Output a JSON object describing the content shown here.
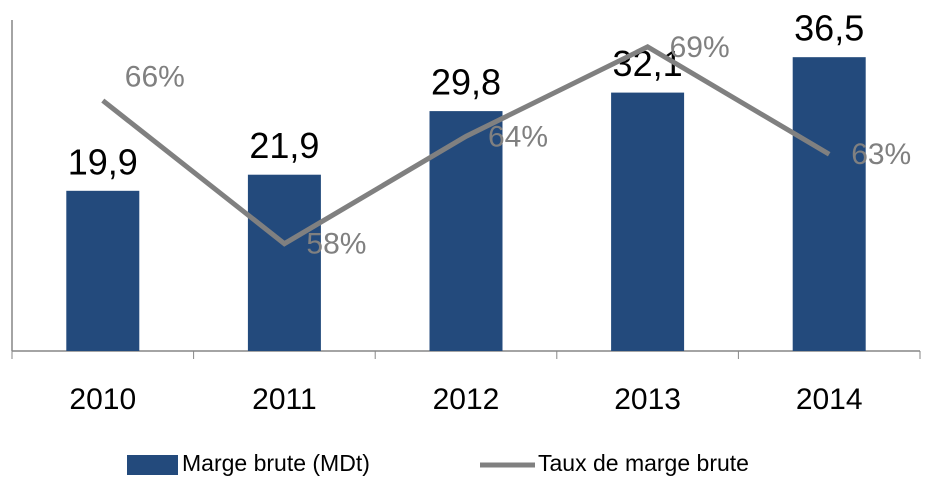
{
  "chart_data": {
    "type": "bar",
    "categories": [
      "2010",
      "2011",
      "2012",
      "2013",
      "2014"
    ],
    "series": [
      {
        "name": "Marge brute (MDt)",
        "type": "bar",
        "color": "#234a7c",
        "values": [
          19.9,
          21.9,
          29.8,
          32.1,
          36.5
        ],
        "value_labels": [
          "19,9",
          "21,9",
          "29,8",
          "32,1",
          "36,5"
        ]
      },
      {
        "name": "Taux de marge brute",
        "type": "line",
        "axis": "y2",
        "color": "#808080",
        "values": [
          66,
          58,
          64,
          69,
          63
        ],
        "value_labels": [
          "66%",
          "58%",
          "64%",
          "69%",
          "63%"
        ]
      }
    ],
    "ylim": [
      0,
      40
    ],
    "y2lim": [
      52,
      70
    ],
    "legend": "bottom"
  }
}
